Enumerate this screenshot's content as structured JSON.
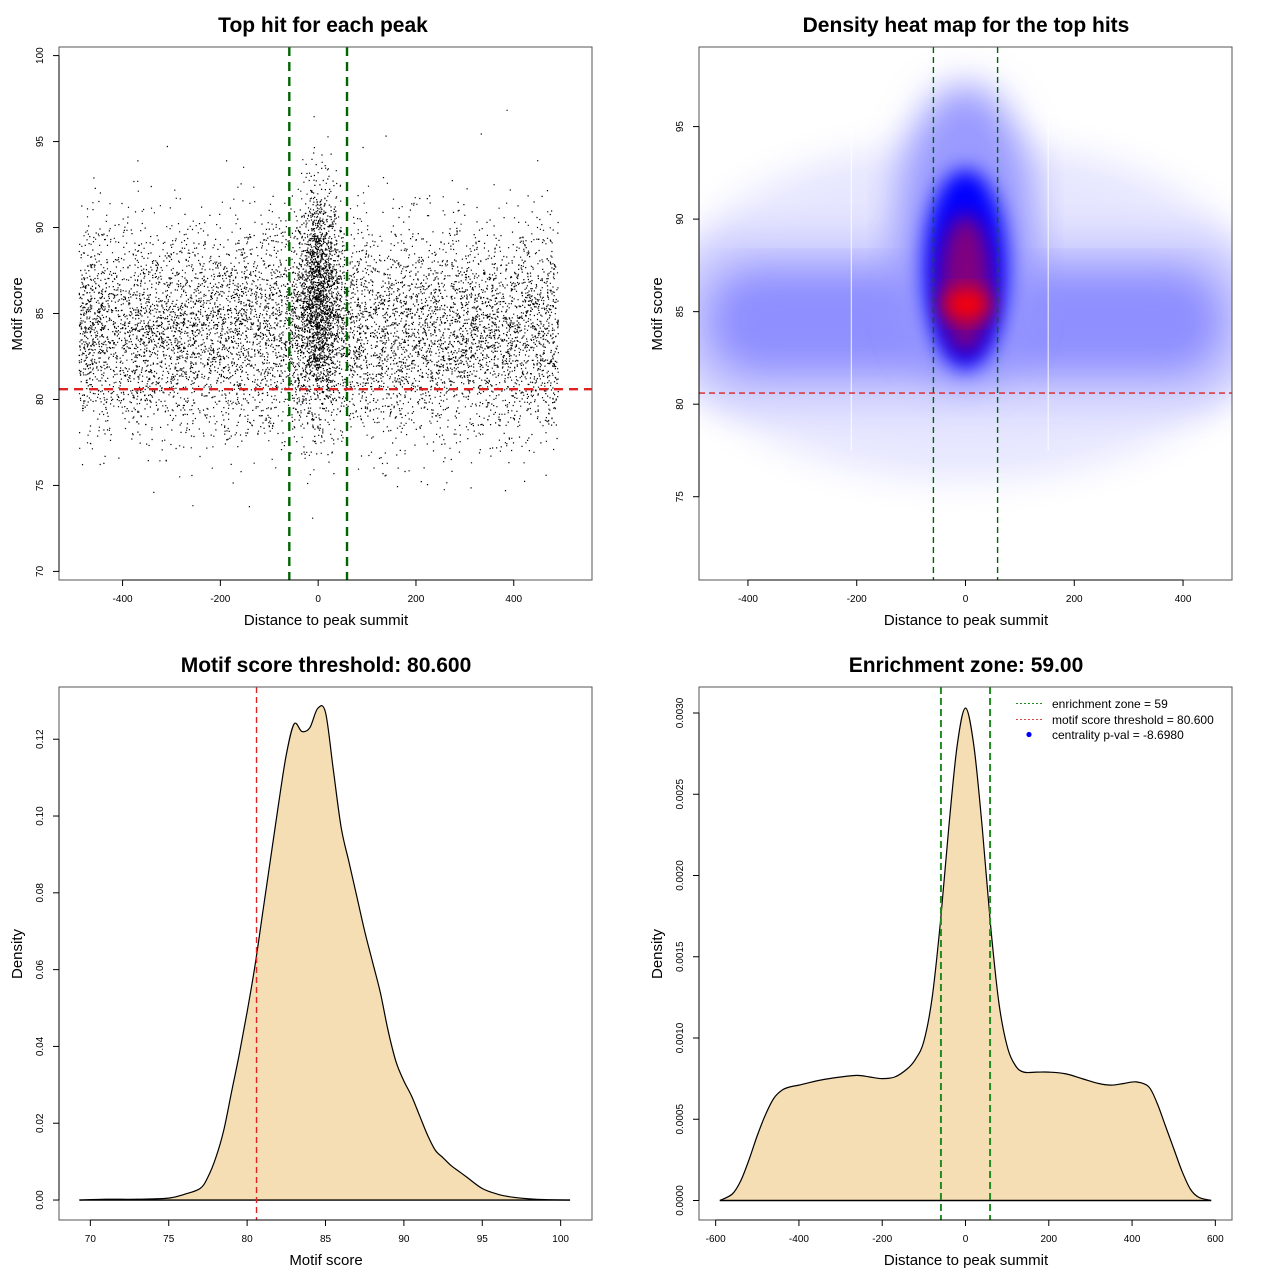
{
  "chart_data": [
    {
      "type": "scatter",
      "title": "Top hit for each peak",
      "xlabel": "Distance to peak summit",
      "ylabel": "Motif score",
      "xlim": [
        -530,
        560
      ],
      "ylim": [
        69.5,
        100.5
      ],
      "xticks": [
        -400,
        -200,
        0,
        200,
        400
      ],
      "yticks": [
        70,
        75,
        80,
        85,
        90,
        95,
        100
      ],
      "xtick_labels": [
        "-400",
        "-200",
        "0",
        "200",
        "400"
      ],
      "ytick_labels": [
        "70",
        "75",
        "80",
        "85",
        "90",
        "95",
        "100"
      ],
      "description": "Approximately 10000 points; x uniformly spread over -500..500, y mostly 78..92 centered near 84; dense cluster near x=0 with scores up to ~99",
      "point_distribution": {
        "n_points": 10000,
        "background": {
          "x_range": [
            -490,
            490
          ],
          "y_mean": 84.0,
          "y_sd": 3.0
        },
        "central_cluster": {
          "x_mean": 0,
          "x_sd": 22,
          "y_mean": 86.0,
          "y_sd": 3.2,
          "fraction": 0.18
        }
      },
      "hlines": [
        {
          "y": 80.6,
          "color": "#dd2222",
          "style": "dashed",
          "label": "motif score threshold"
        }
      ],
      "vlines": [
        {
          "x": -59,
          "color": "#006400",
          "style": "dashed"
        },
        {
          "x": 59,
          "color": "#006400",
          "style": "dashed"
        }
      ],
      "grid": false
    },
    {
      "type": "heatmap",
      "title": "Density heat map for the top hits",
      "xlabel": "Distance to peak summit",
      "ylabel": "Motif score",
      "xlim": [
        -490,
        490
      ],
      "ylim": [
        70.5,
        99.3
      ],
      "xticks": [
        -400,
        -200,
        0,
        200,
        400
      ],
      "yticks": [
        75,
        80,
        85,
        90,
        95
      ],
      "xtick_labels": [
        "-400",
        "-200",
        "0",
        "200",
        "400"
      ],
      "ytick_labels": [
        "75",
        "80",
        "85",
        "90",
        "95"
      ],
      "colormap": [
        "#ffffff",
        "#0000ff",
        "#ff0000"
      ],
      "density_peak": {
        "x": 0,
        "y": 85.4
      },
      "background_band": {
        "y_center": 84.5,
        "y_spread": 3.5
      },
      "hlines": [
        {
          "y": 80.6,
          "color": "#dd2222",
          "style": "dashed"
        }
      ],
      "vlines": [
        {
          "x": -59,
          "color": "#006400",
          "style": "dashed"
        },
        {
          "x": 59,
          "color": "#006400",
          "style": "dashed"
        }
      ],
      "grid": false
    },
    {
      "type": "area",
      "title": "Motif score threshold: 80.600",
      "xlabel": "Motif score",
      "ylabel": "Density",
      "xlim": [
        68,
        102
      ],
      "ylim": [
        -0.0052,
        0.1336
      ],
      "xticks": [
        70,
        75,
        80,
        85,
        90,
        95,
        100
      ],
      "yticks": [
        0.0,
        0.02,
        0.04,
        0.06,
        0.08,
        0.1,
        0.12
      ],
      "xtick_labels": [
        "70",
        "75",
        "80",
        "85",
        "90",
        "95",
        "100"
      ],
      "ytick_labels": [
        "0.00",
        "0.02",
        "0.04",
        "0.06",
        "0.08",
        "0.10",
        "0.12"
      ],
      "fill_color": "#f5deb3",
      "x": [
        69.3,
        71,
        73,
        75,
        76,
        77,
        77.5,
        78,
        78.5,
        79,
        79.5,
        80,
        80.5,
        81,
        81.5,
        82,
        82.5,
        83,
        83.5,
        84,
        84.5,
        85,
        85.5,
        86,
        86.5,
        87,
        87.5,
        88,
        88.5,
        89,
        89.5,
        90,
        90.5,
        91,
        91.5,
        92,
        92.5,
        93,
        93.5,
        94,
        95,
        96,
        97,
        98,
        99,
        100.6
      ],
      "y": [
        0.0,
        0.0002,
        0.0002,
        0.0005,
        0.0015,
        0.003,
        0.006,
        0.011,
        0.018,
        0.028,
        0.038,
        0.049,
        0.061,
        0.075,
        0.089,
        0.103,
        0.116,
        0.124,
        0.122,
        0.123,
        0.128,
        0.127,
        0.112,
        0.097,
        0.088,
        0.079,
        0.07,
        0.062,
        0.054,
        0.044,
        0.036,
        0.031,
        0.027,
        0.022,
        0.017,
        0.013,
        0.011,
        0.009,
        0.0075,
        0.006,
        0.003,
        0.0015,
        0.0007,
        0.0003,
        0.0001,
        0.0
      ],
      "vlines": [
        {
          "x": 80.6,
          "color": "#dd2222",
          "style": "dashed"
        }
      ],
      "grid": false
    },
    {
      "type": "area",
      "title": "Enrichment zone: 59.00",
      "xlabel": "Distance to peak summit",
      "ylabel": "Density",
      "xlim": [
        -640,
        640
      ],
      "ylim": [
        -0.00012,
        0.00316
      ],
      "xticks": [
        -600,
        -400,
        -200,
        0,
        200,
        400,
        600
      ],
      "yticks": [
        0.0,
        0.0005,
        0.001,
        0.0015,
        0.002,
        0.0025,
        0.003
      ],
      "xtick_labels": [
        "-600",
        "-400",
        "-200",
        "0",
        "200",
        "400",
        "600"
      ],
      "ytick_labels": [
        "0.0000",
        "0.0005",
        "0.0010",
        "0.0015",
        "0.0020",
        "0.0025",
        "0.0030"
      ],
      "fill_color": "#f5deb3",
      "x": [
        -590,
        -560,
        -540,
        -520,
        -500,
        -480,
        -460,
        -440,
        -420,
        -400,
        -350,
        -300,
        -260,
        -230,
        -200,
        -170,
        -140,
        -120,
        -100,
        -80,
        -60,
        -40,
        -20,
        0,
        20,
        40,
        60,
        80,
        100,
        120,
        140,
        170,
        200,
        240,
        280,
        320,
        350,
        380,
        410,
        440,
        460,
        480,
        500,
        520,
        540,
        560,
        590
      ],
      "y": [
        0.0,
        4e-05,
        0.00012,
        0.00025,
        0.0004,
        0.00053,
        0.00063,
        0.00068,
        0.0007,
        0.00071,
        0.00074,
        0.00076,
        0.00077,
        0.00076,
        0.00075,
        0.00076,
        0.00081,
        0.00087,
        0.00098,
        0.00125,
        0.00172,
        0.0023,
        0.0028,
        0.00303,
        0.0028,
        0.0023,
        0.0017,
        0.00122,
        0.00095,
        0.00083,
        0.00079,
        0.00079,
        0.00079,
        0.00078,
        0.00075,
        0.00072,
        0.00071,
        0.00072,
        0.00073,
        0.0007,
        0.0006,
        0.00046,
        0.00032,
        0.00018,
        7e-05,
        2e-05,
        0.0
      ],
      "vlines": [
        {
          "x": -59,
          "color": "#228b22",
          "style": "dashed"
        },
        {
          "x": 59,
          "color": "#228b22",
          "style": "dashed"
        }
      ],
      "legend": {
        "position": "top-right",
        "entries": [
          {
            "label": "enrichment zone = 59",
            "symbol": "dotted-line",
            "color": "#228b22"
          },
          {
            "label": "motif score threshold = 80.600",
            "symbol": "dotted-line",
            "color": "#dd4444"
          },
          {
            "label": "centrality p-val = -8.6980",
            "symbol": "dot",
            "color": "#0000ff"
          }
        ]
      },
      "grid": false
    }
  ]
}
